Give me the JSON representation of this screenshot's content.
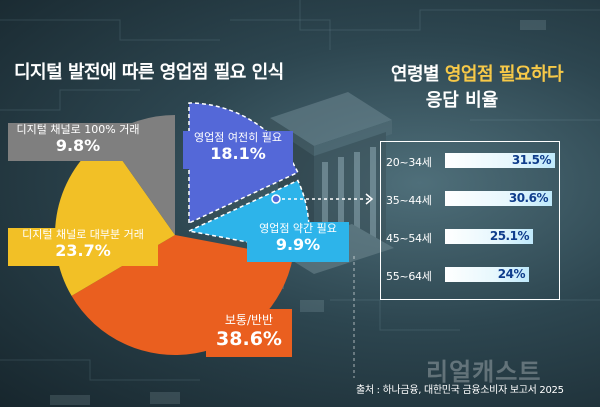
{
  "left_title": "디지털 발전에 따른 영업점 필요 인식",
  "right_title": {
    "prefix": "연령별 ",
    "highlight": "영업점 필요하다",
    "line2": "응답 비율"
  },
  "colors": {
    "gray": "#7f7f7f",
    "yellow": "#f2c026",
    "orange": "#ea5f1f",
    "cyan": "#2db4ea",
    "blue": "#5468d8",
    "highlight": "#f7c948",
    "bar_text": "#0f3d8c"
  },
  "chart_data": [
    {
      "type": "pie",
      "title": "디지털 발전에 따른 영업점 필요 인식",
      "start": "top, clockwise",
      "slices": [
        {
          "label": "영업점 여전히 필요",
          "value": 18.1,
          "display": "18.1%",
          "color": "#5468d8"
        },
        {
          "label": "영업점 약간 필요",
          "value": 9.9,
          "display": "9.9%",
          "color": "#2db4ea"
        },
        {
          "label": "보통/반반",
          "value": 38.6,
          "display": "38.6%",
          "color": "#ea5f1f"
        },
        {
          "label": "디지털 채널로 대부분 거래",
          "value": 23.7,
          "display": "23.7%",
          "color": "#f2c026"
        },
        {
          "label": "디지털 채널로 100% 거래",
          "value": 9.8,
          "display": "9.8%",
          "color": "#7f7f7f"
        }
      ]
    },
    {
      "type": "bar",
      "orientation": "horizontal",
      "title": "연령별 영업점 필요하다 응답 비율",
      "categories": [
        "20~34세",
        "35~44세",
        "45~54세",
        "55~64세"
      ],
      "values": [
        31.5,
        30.6,
        25.1,
        24
      ],
      "labels": [
        "31.5",
        "30.6",
        "25.1",
        "24"
      ],
      "unit": "%",
      "xlim": [
        0,
        31.5
      ]
    }
  ],
  "watermark": "리얼캐스트",
  "source": "출처 : 하나금융, 대한민국 금융소비자 보고서 2025"
}
